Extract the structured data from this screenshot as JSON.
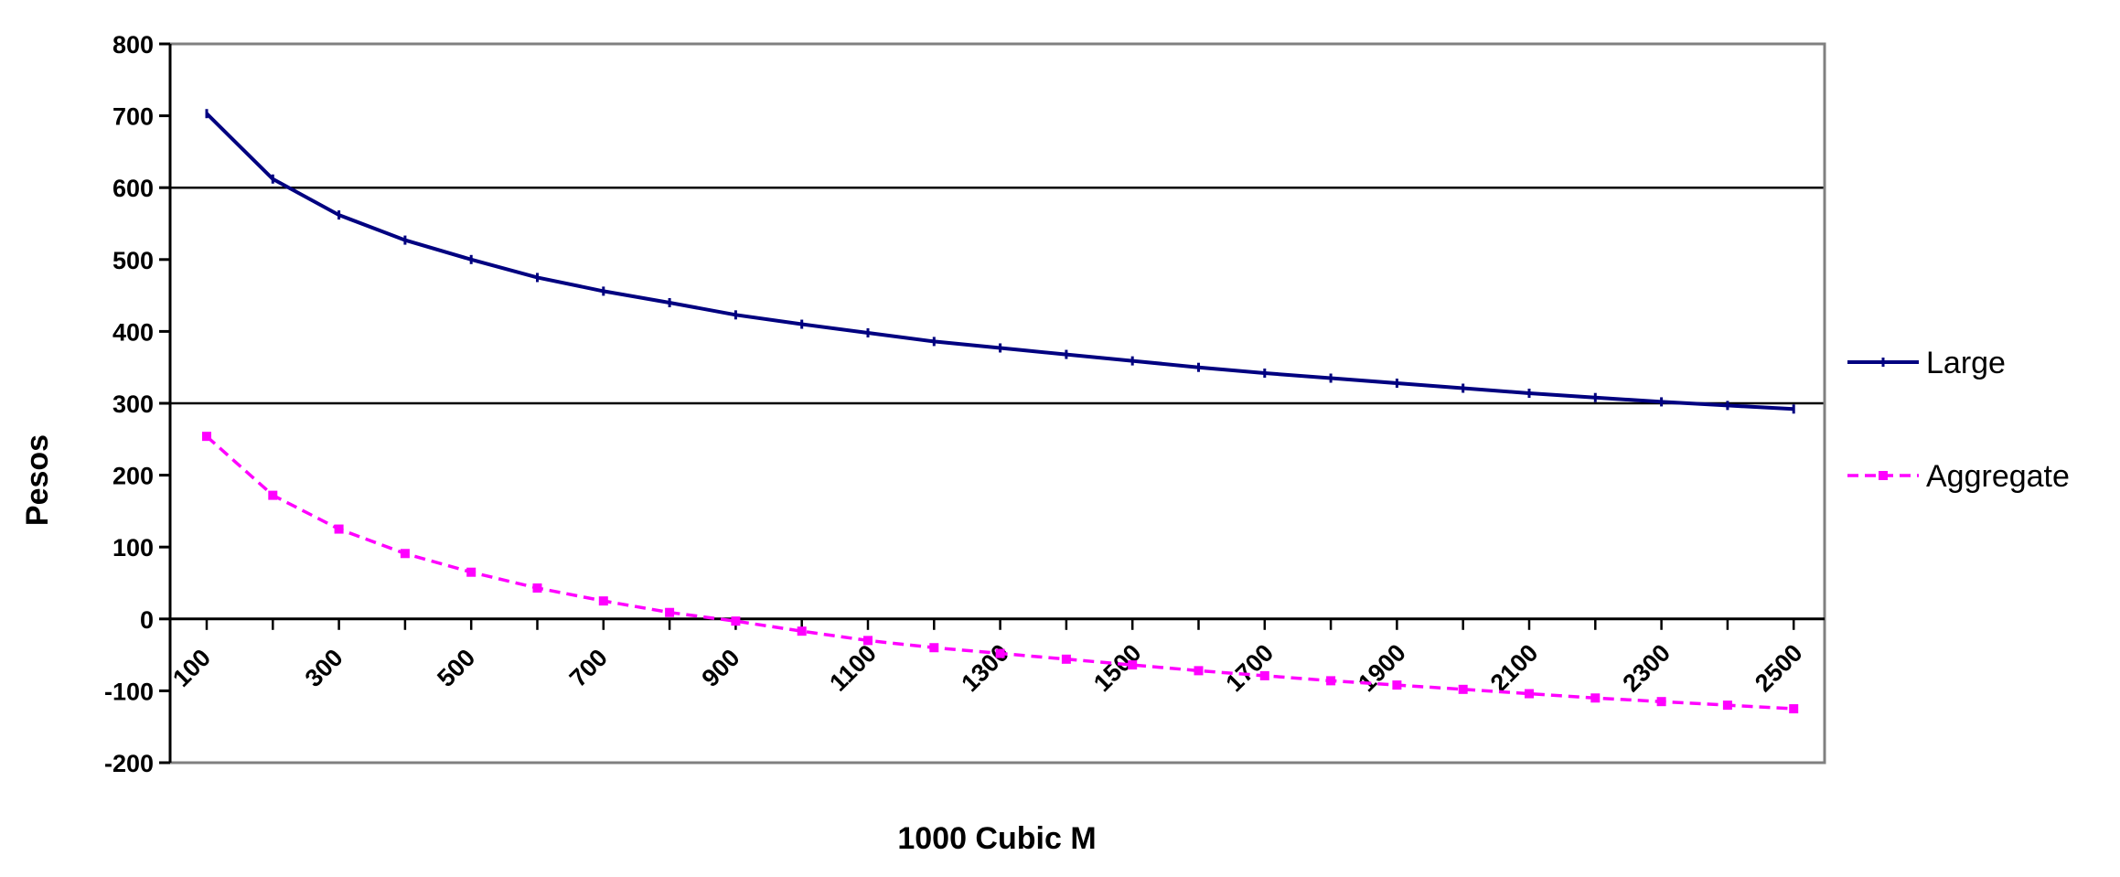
{
  "chart_data": {
    "type": "line",
    "title": "",
    "xlabel": "1000 Cubic M",
    "ylabel": "Pesos",
    "ylim": [
      -200,
      800
    ],
    "yticks": [
      800,
      700,
      600,
      500,
      400,
      300,
      200,
      100,
      0,
      -100,
      -200
    ],
    "x": [
      100,
      200,
      300,
      400,
      500,
      600,
      700,
      800,
      900,
      1000,
      1100,
      1200,
      1300,
      1400,
      1500,
      1600,
      1700,
      1800,
      1900,
      2000,
      2100,
      2200,
      2300,
      2400,
      2500
    ],
    "xtick_labels": [
      "100",
      "300",
      "500",
      "700",
      "900",
      "1100",
      "1300",
      "1500",
      "1700",
      "1900",
      "2100",
      "2300",
      "2500"
    ],
    "gridlines_y": [
      600,
      300,
      0
    ],
    "legend_position": "right",
    "series": [
      {
        "name": "Large",
        "color": "#000080",
        "style": "solid",
        "values": [
          703,
          612,
          562,
          527,
          500,
          475,
          456,
          440,
          423,
          410,
          398,
          386,
          377,
          368,
          359,
          350,
          342,
          335,
          328,
          321,
          314,
          308,
          302,
          297,
          292
        ]
      },
      {
        "name": "Aggregate",
        "color": "#ff00ff",
        "style": "dashed",
        "values": [
          254,
          172,
          125,
          91,
          65,
          43,
          25,
          9,
          -3,
          -17,
          -30,
          -40,
          -48,
          -56,
          -64,
          -72,
          -79,
          -86,
          -92,
          -98,
          -104,
          -110,
          -115,
          -120,
          -125
        ]
      }
    ]
  }
}
